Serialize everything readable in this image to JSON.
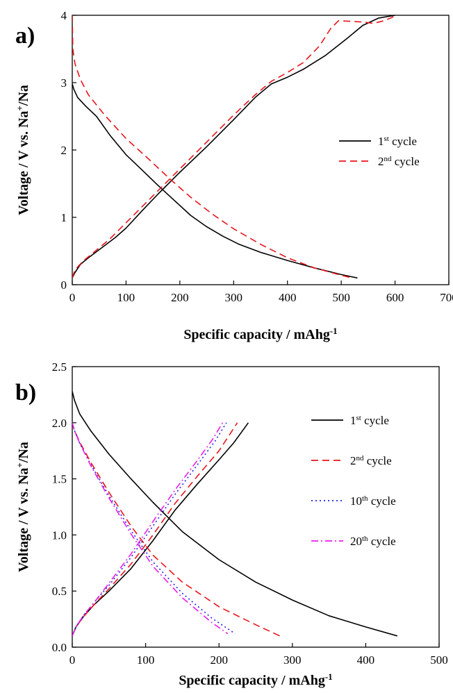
{
  "chart_data": [
    {
      "type": "line",
      "panel_label": "a)",
      "xlabel": "Specific capacity / mAhg",
      "xlabel_sup": "-1",
      "ylabel_parts": [
        "Voltage / V vs. Na",
        "+",
        "/Na"
      ],
      "xlim": [
        0,
        700
      ],
      "ylim": [
        0,
        4
      ],
      "xticks": [
        "0",
        "100",
        "200",
        "300",
        "400",
        "500",
        "600",
        "700"
      ],
      "yticks": [
        "0",
        "1",
        "2",
        "3",
        "4"
      ],
      "legend_position": "middle-right",
      "series": [
        {
          "label_num": "1",
          "label_sup": "st",
          "label_rest": " cycle",
          "color": "#000000",
          "dash": "solid",
          "discharge": [
            [
              0,
              2.98
            ],
            [
              3,
              2.9
            ],
            [
              10,
              2.78
            ],
            [
              25,
              2.65
            ],
            [
              45,
              2.5
            ],
            [
              70,
              2.22
            ],
            [
              100,
              1.93
            ],
            [
              130,
              1.7
            ],
            [
              160,
              1.47
            ],
            [
              190,
              1.25
            ],
            [
              220,
              1.03
            ],
            [
              250,
              0.86
            ],
            [
              280,
              0.72
            ],
            [
              310,
              0.6
            ],
            [
              350,
              0.48
            ],
            [
              400,
              0.36
            ],
            [
              450,
              0.25
            ],
            [
              500,
              0.15
            ],
            [
              530,
              0.1
            ]
          ],
          "charge": [
            [
              0,
              0.1
            ],
            [
              5,
              0.18
            ],
            [
              15,
              0.3
            ],
            [
              30,
              0.4
            ],
            [
              50,
              0.52
            ],
            [
              80,
              0.7
            ],
            [
              100,
              0.84
            ],
            [
              130,
              1.1
            ],
            [
              160,
              1.35
            ],
            [
              200,
              1.67
            ],
            [
              250,
              2.05
            ],
            [
              300,
              2.45
            ],
            [
              340,
              2.78
            ],
            [
              370,
              2.98
            ],
            [
              400,
              3.08
            ],
            [
              430,
              3.2
            ],
            [
              470,
              3.4
            ],
            [
              510,
              3.65
            ],
            [
              540,
              3.85
            ],
            [
              570,
              3.96
            ],
            [
              600,
              4.0
            ]
          ]
        },
        {
          "label_num": "2",
          "label_sup": "nd",
          "label_rest": " cycle",
          "color": "#e8141b",
          "dash": "dash",
          "discharge": [
            [
              0,
              4.0
            ],
            [
              1,
              3.5
            ],
            [
              5,
              3.28
            ],
            [
              15,
              3.05
            ],
            [
              30,
              2.82
            ],
            [
              60,
              2.52
            ],
            [
              100,
              2.17
            ],
            [
              140,
              1.88
            ],
            [
              180,
              1.58
            ],
            [
              220,
              1.3
            ],
            [
              260,
              1.05
            ],
            [
              300,
              0.83
            ],
            [
              350,
              0.6
            ],
            [
              400,
              0.4
            ],
            [
              450,
              0.25
            ],
            [
              500,
              0.14
            ],
            [
              520,
              0.1
            ]
          ],
          "charge": [
            [
              0,
              0.1
            ],
            [
              5,
              0.22
            ],
            [
              20,
              0.35
            ],
            [
              40,
              0.48
            ],
            [
              70,
              0.68
            ],
            [
              100,
              0.92
            ],
            [
              150,
              1.32
            ],
            [
              200,
              1.72
            ],
            [
              250,
              2.12
            ],
            [
              300,
              2.52
            ],
            [
              340,
              2.82
            ],
            [
              370,
              3.02
            ],
            [
              400,
              3.15
            ],
            [
              430,
              3.3
            ],
            [
              460,
              3.55
            ],
            [
              480,
              3.8
            ],
            [
              495,
              3.92
            ],
            [
              540,
              3.9
            ],
            [
              560,
              3.88
            ],
            [
              580,
              3.92
            ],
            [
              595,
              3.97
            ],
            [
              600,
              4.0
            ]
          ]
        }
      ]
    },
    {
      "type": "line",
      "panel_label": "b)",
      "xlabel": "Specific capacity / mAhg",
      "xlabel_sup": "-1",
      "ylabel_parts": [
        "Voltage / V vs. Na",
        "+",
        "/Na"
      ],
      "xlim": [
        0,
        500
      ],
      "ylim": [
        0,
        2.5
      ],
      "xticks": [
        "0",
        "100",
        "200",
        "300",
        "400",
        "500"
      ],
      "yticks": [
        "0.0",
        "0.5",
        "1.0",
        "1.5",
        "2.0",
        "2.5"
      ],
      "legend_position": "right",
      "series": [
        {
          "label_num": "1",
          "label_sup": "st",
          "label_rest": " cycle",
          "color": "#000000",
          "dash": "solid",
          "discharge": [
            [
              0,
              2.28
            ],
            [
              3,
              2.2
            ],
            [
              10,
              2.08
            ],
            [
              25,
              1.93
            ],
            [
              50,
              1.72
            ],
            [
              80,
              1.5
            ],
            [
              110,
              1.29
            ],
            [
              150,
              1.03
            ],
            [
              200,
              0.78
            ],
            [
              250,
              0.58
            ],
            [
              300,
              0.42
            ],
            [
              350,
              0.28
            ],
            [
              400,
              0.18
            ],
            [
              443,
              0.1
            ]
          ],
          "charge": [
            [
              0,
              0.1
            ],
            [
              5,
              0.18
            ],
            [
              15,
              0.27
            ],
            [
              30,
              0.38
            ],
            [
              50,
              0.5
            ],
            [
              80,
              0.7
            ],
            [
              110,
              0.95
            ],
            [
              140,
              1.22
            ],
            [
              170,
              1.45
            ],
            [
              200,
              1.67
            ],
            [
              220,
              1.82
            ],
            [
              240,
              2.0
            ]
          ]
        },
        {
          "label_num": "2",
          "label_sup": "nd",
          "label_rest": " cycle",
          "color": "#e8141b",
          "dash": "dash",
          "discharge": [
            [
              0,
              2.0
            ],
            [
              3,
              1.93
            ],
            [
              10,
              1.83
            ],
            [
              25,
              1.65
            ],
            [
              50,
              1.38
            ],
            [
              80,
              1.08
            ],
            [
              110,
              0.82
            ],
            [
              150,
              0.58
            ],
            [
              200,
              0.36
            ],
            [
              250,
              0.2
            ],
            [
              283,
              0.1
            ]
          ],
          "charge": [
            [
              0,
              0.1
            ],
            [
              5,
              0.18
            ],
            [
              15,
              0.27
            ],
            [
              30,
              0.38
            ],
            [
              50,
              0.52
            ],
            [
              80,
              0.74
            ],
            [
              110,
              1.0
            ],
            [
              140,
              1.28
            ],
            [
              170,
              1.52
            ],
            [
              200,
              1.75
            ],
            [
              225,
              2.0
            ]
          ]
        },
        {
          "label_num": "10",
          "label_sup": "th",
          "label_rest": " cycle",
          "color": "#1f1fe8",
          "dash": "dot",
          "discharge": [
            [
              0,
              2.0
            ],
            [
              3,
              1.93
            ],
            [
              10,
              1.82
            ],
            [
              25,
              1.63
            ],
            [
              50,
              1.35
            ],
            [
              80,
              1.04
            ],
            [
              110,
              0.76
            ],
            [
              150,
              0.48
            ],
            [
              190,
              0.26
            ],
            [
              222,
              0.12
            ]
          ],
          "charge": [
            [
              0,
              0.1
            ],
            [
              5,
              0.18
            ],
            [
              15,
              0.28
            ],
            [
              30,
              0.4
            ],
            [
              50,
              0.55
            ],
            [
              80,
              0.8
            ],
            [
              110,
              1.08
            ],
            [
              140,
              1.36
            ],
            [
              170,
              1.62
            ],
            [
              195,
              1.84
            ],
            [
              210,
              2.0
            ]
          ]
        },
        {
          "label_num": "20",
          "label_sup": "th",
          "label_rest": " cycle",
          "color": "#e81ee8",
          "dash": "dashdot",
          "discharge": [
            [
              0,
              2.0
            ],
            [
              3,
              1.93
            ],
            [
              10,
              1.82
            ],
            [
              25,
              1.62
            ],
            [
              50,
              1.33
            ],
            [
              80,
              1.01
            ],
            [
              110,
              0.72
            ],
            [
              150,
              0.44
            ],
            [
              190,
              0.22
            ],
            [
              212,
              0.12
            ]
          ],
          "charge": [
            [
              0,
              0.1
            ],
            [
              5,
              0.18
            ],
            [
              15,
              0.28
            ],
            [
              30,
              0.4
            ],
            [
              50,
              0.57
            ],
            [
              80,
              0.83
            ],
            [
              110,
              1.12
            ],
            [
              140,
              1.4
            ],
            [
              170,
              1.66
            ],
            [
              190,
              1.84
            ],
            [
              205,
              2.0
            ]
          ]
        }
      ]
    }
  ]
}
